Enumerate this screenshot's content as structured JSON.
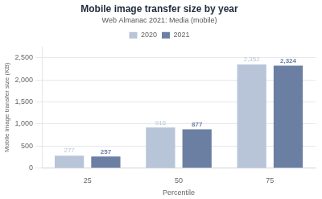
{
  "chart_data": {
    "type": "bar",
    "title": "Mobile image transfer size by year",
    "subtitle": "Web Almanac 2021: Media (mobile)",
    "xlabel": "Percentile",
    "ylabel": "Mobile image transfer size (KB)",
    "categories": [
      25,
      50,
      75
    ],
    "series": [
      {
        "name": "2020",
        "color": "#b8c5d9",
        "values": [
          277,
          916,
          2352
        ],
        "value_labels": [
          "277",
          "916",
          "2,352"
        ]
      },
      {
        "name": "2021",
        "color": "#6b7fa3",
        "values": [
          257,
          877,
          2324
        ],
        "value_labels": [
          "257",
          "877",
          "2,324"
        ]
      }
    ],
    "ylim": [
      0,
      2750
    ],
    "yticks": [
      0,
      500,
      {
        "value": 1000,
        "label": "1,000"
      },
      {
        "value": 1500,
        "label": "1,500"
      },
      {
        "value": 2000,
        "label": "2,000"
      },
      {
        "value": 2500,
        "label": "2,500"
      }
    ],
    "grid": true,
    "legend": "top",
    "data_labels": true
  }
}
